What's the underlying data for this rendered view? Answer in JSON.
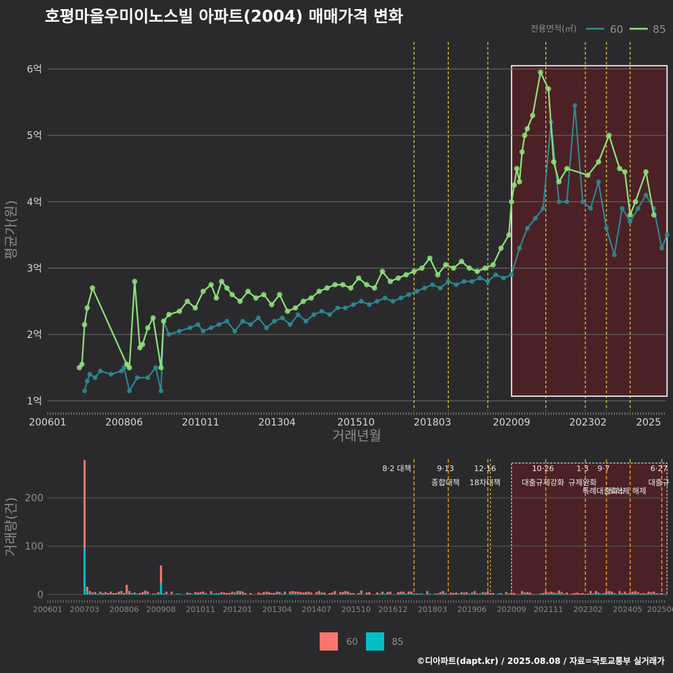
{
  "title": "호평마을우미이노스빌 아파트(2004) 매매가격 변화",
  "credit": "©디아파트(dapt.kr) / 2025.08.08 / 자료=국토교통부 실거래가",
  "colors": {
    "background": "#2a2a2c",
    "line60": "#2e8b95",
    "line85": "#8fe07a",
    "bar60": "#f8766d",
    "bar85": "#00bfc4",
    "policy": "#e8d040",
    "shade": "#5a1e22"
  },
  "chart_data": [
    {
      "type": "line",
      "xlabel": "거래년월",
      "ylabel": "평균가(원)",
      "ylim": [
        0.85,
        6.3
      ],
      "y_ticks": [
        1,
        2,
        3,
        4,
        5,
        6
      ],
      "y_tick_labels": [
        "1억",
        "2억",
        "3억",
        "4억",
        "5억",
        "6억"
      ],
      "x_tick_labels": [
        "200601",
        "200806",
        "201011",
        "201304",
        "201510",
        "201803",
        "202009",
        "202302",
        "2025"
      ],
      "legend_title": "전용면적(㎡)",
      "legend_position": "top-right",
      "grid": true,
      "policy_dates": [
        "2017.08",
        "2018.09",
        "2019.12",
        "2021.10",
        "2023.01",
        "2023.09",
        "2024.06"
      ],
      "highlight_range": [
        "2020.09",
        "2025.08"
      ],
      "series": [
        {
          "name": "60",
          "x": [
            "2007.03",
            "2007.04",
            "2007.05",
            "2007.07",
            "2007.09",
            "2008.01",
            "2008.05",
            "2008.06",
            "2008.08",
            "2008.11",
            "2009.03",
            "2009.06",
            "2009.08",
            "2009.09",
            "2009.11",
            "2010.03",
            "2010.07",
            "2010.10",
            "2010.12",
            "2011.03",
            "2011.06",
            "2011.09",
            "2011.12",
            "2012.03",
            "2012.06",
            "2012.09",
            "2012.12",
            "2013.03",
            "2013.06",
            "2013.09",
            "2013.12",
            "2014.03",
            "2014.06",
            "2014.09",
            "2014.12",
            "2015.03",
            "2015.06",
            "2015.09",
            "2015.12",
            "2016.03",
            "2016.06",
            "2016.09",
            "2016.12",
            "2017.03",
            "2017.06",
            "2017.09",
            "2017.12",
            "2018.03",
            "2018.06",
            "2018.09",
            "2018.12",
            "2019.03",
            "2019.06",
            "2019.09",
            "2019.12",
            "2020.03",
            "2020.06",
            "2020.09",
            "2020.12",
            "2021.03",
            "2021.06",
            "2021.09",
            "2021.12",
            "2022.03",
            "2022.06",
            "2022.09",
            "2022.12",
            "2023.03",
            "2023.06",
            "2023.09",
            "2023.12",
            "2024.03",
            "2024.06",
            "2024.09",
            "2024.12",
            "2025.03",
            "2025.06",
            "2025.08"
          ],
          "y": [
            1.15,
            1.3,
            1.4,
            1.35,
            1.45,
            1.4,
            1.45,
            1.5,
            1.15,
            1.35,
            1.35,
            1.5,
            1.15,
            2.2,
            2.0,
            2.05,
            2.1,
            2.15,
            2.05,
            2.1,
            2.15,
            2.2,
            2.05,
            2.2,
            2.15,
            2.25,
            2.1,
            2.2,
            2.25,
            2.15,
            2.3,
            2.2,
            2.3,
            2.35,
            2.3,
            2.4,
            2.4,
            2.45,
            2.5,
            2.45,
            2.5,
            2.55,
            2.5,
            2.55,
            2.6,
            2.65,
            2.7,
            2.75,
            2.7,
            2.8,
            2.75,
            2.8,
            2.8,
            2.85,
            2.8,
            2.9,
            2.85,
            2.9,
            3.3,
            3.6,
            3.75,
            3.9,
            5.2,
            4.0,
            4.0,
            5.45,
            4.0,
            3.9,
            4.3,
            3.6,
            3.2,
            3.9,
            3.7,
            3.9,
            4.1,
            3.9,
            3.3,
            3.5
          ]
        },
        {
          "name": "85",
          "x": [
            "2007.01",
            "2007.02",
            "2007.03",
            "2007.04",
            "2007.06",
            "2008.07",
            "2008.08",
            "2008.10",
            "2008.12",
            "2009.01",
            "2009.03",
            "2009.05",
            "2009.08",
            "2009.09",
            "2009.11",
            "2010.03",
            "2010.06",
            "2010.09",
            "2010.12",
            "2011.03",
            "2011.05",
            "2011.07",
            "2011.09",
            "2011.11",
            "2012.02",
            "2012.05",
            "2012.08",
            "2012.11",
            "2013.02",
            "2013.05",
            "2013.08",
            "2013.11",
            "2014.02",
            "2014.05",
            "2014.08",
            "2014.11",
            "2015.02",
            "2015.05",
            "2015.08",
            "2015.11",
            "2016.02",
            "2016.05",
            "2016.08",
            "2016.11",
            "2017.02",
            "2017.05",
            "2017.08",
            "2017.11",
            "2018.02",
            "2018.05",
            "2018.08",
            "2018.11",
            "2019.02",
            "2019.05",
            "2019.08",
            "2019.11",
            "2020.02",
            "2020.05",
            "2020.08",
            "2020.09",
            "2020.10",
            "2020.11",
            "2020.12",
            "2021.01",
            "2021.02",
            "2021.03",
            "2021.05",
            "2021.08",
            "2021.11",
            "2022.01",
            "2022.03",
            "2022.06",
            "2023.02",
            "2023.06",
            "2023.10",
            "2024.02",
            "2024.04",
            "2024.06",
            "2024.08",
            "2024.12",
            "2025.03"
          ],
          "y": [
            1.5,
            1.55,
            2.15,
            2.4,
            2.7,
            1.55,
            1.5,
            2.8,
            1.8,
            1.85,
            2.1,
            2.25,
            1.5,
            2.2,
            2.3,
            2.35,
            2.5,
            2.4,
            2.65,
            2.75,
            2.55,
            2.8,
            2.7,
            2.6,
            2.5,
            2.65,
            2.55,
            2.6,
            2.45,
            2.6,
            2.35,
            2.4,
            2.5,
            2.55,
            2.65,
            2.7,
            2.75,
            2.75,
            2.7,
            2.85,
            2.75,
            2.7,
            2.95,
            2.8,
            2.85,
            2.9,
            2.95,
            3.0,
            3.15,
            2.9,
            3.05,
            3.0,
            3.1,
            3.0,
            2.95,
            3.0,
            3.05,
            3.3,
            3.5,
            4.0,
            4.25,
            4.5,
            4.3,
            4.75,
            5.0,
            5.1,
            5.3,
            5.95,
            5.7,
            4.6,
            4.3,
            4.5,
            4.4,
            4.6,
            5.0,
            4.5,
            4.45,
            3.8,
            4.0,
            4.45,
            3.8
          ]
        }
      ]
    },
    {
      "type": "bar",
      "ylabel": "거래량(건)",
      "ylim": [
        0,
        280
      ],
      "y_ticks": [
        0,
        100,
        200
      ],
      "x_tick_labels": [
        "200601",
        "200703",
        "200806",
        "200908",
        "201011",
        "201201",
        "201304",
        "201407",
        "201510",
        "201612",
        "201803",
        "201906",
        "202009",
        "202111",
        "202302",
        "202405",
        "202506"
      ],
      "legend_position": "bottom",
      "series_names": [
        "60",
        "85"
      ],
      "spikes": [
        {
          "date": "2007.03",
          "s60": 180,
          "s85": 98
        },
        {
          "date": "2009.08",
          "s60": 36,
          "s85": 24
        },
        {
          "date": "2008.07",
          "s60": 18,
          "s85": 2
        },
        {
          "date": "2007.04",
          "s60": 10,
          "s85": 6
        }
      ],
      "annotations": [
        {
          "date": "2017.08",
          "line1": "8·2 대책",
          "line2": ""
        },
        {
          "date": "2018.09",
          "line1": "9·13",
          "line2": "종합대책"
        },
        {
          "date": "2019.12",
          "line1": "12·16",
          "line2": "18차대책"
        },
        {
          "date": "2021.10",
          "line1": "10·26",
          "line2": "대출규제강화"
        },
        {
          "date": "2023.01",
          "line1": "1·3",
          "line2": "규제완화"
        },
        {
          "date": "2023.09",
          "line1": "9·7",
          "line2": "특례대출축소"
        },
        {
          "date": "2024.06",
          "line1": "",
          "line2": "토허제 해제"
        },
        {
          "date": "2025.06",
          "line1": "6·27",
          "line2": "대출규"
        }
      ]
    }
  ]
}
